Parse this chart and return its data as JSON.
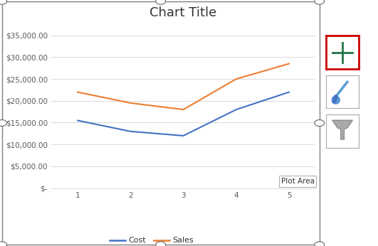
{
  "title": "Chart Title",
  "x": [
    1,
    2,
    3,
    4,
    5
  ],
  "cost": [
    15500,
    13000,
    12000,
    18000,
    22000
  ],
  "sales": [
    22000,
    19500,
    18000,
    25000,
    28500
  ],
  "cost_color": "#4472C4",
  "sales_color": "#ED7D31",
  "bg_color": "#FFFFFF",
  "grid_color": "#D9D9D9",
  "ylim": [
    0,
    38000
  ],
  "yticks": [
    0,
    5000,
    10000,
    15000,
    20000,
    25000,
    30000,
    35000
  ],
  "title_fontsize": 13,
  "legend_labels": [
    "Cost",
    "Sales"
  ],
  "plot_area_label": "Plot Area",
  "border_color": "#7F7F7F",
  "tick_label_color": "#595959",
  "tick_fontsize": 7.5
}
